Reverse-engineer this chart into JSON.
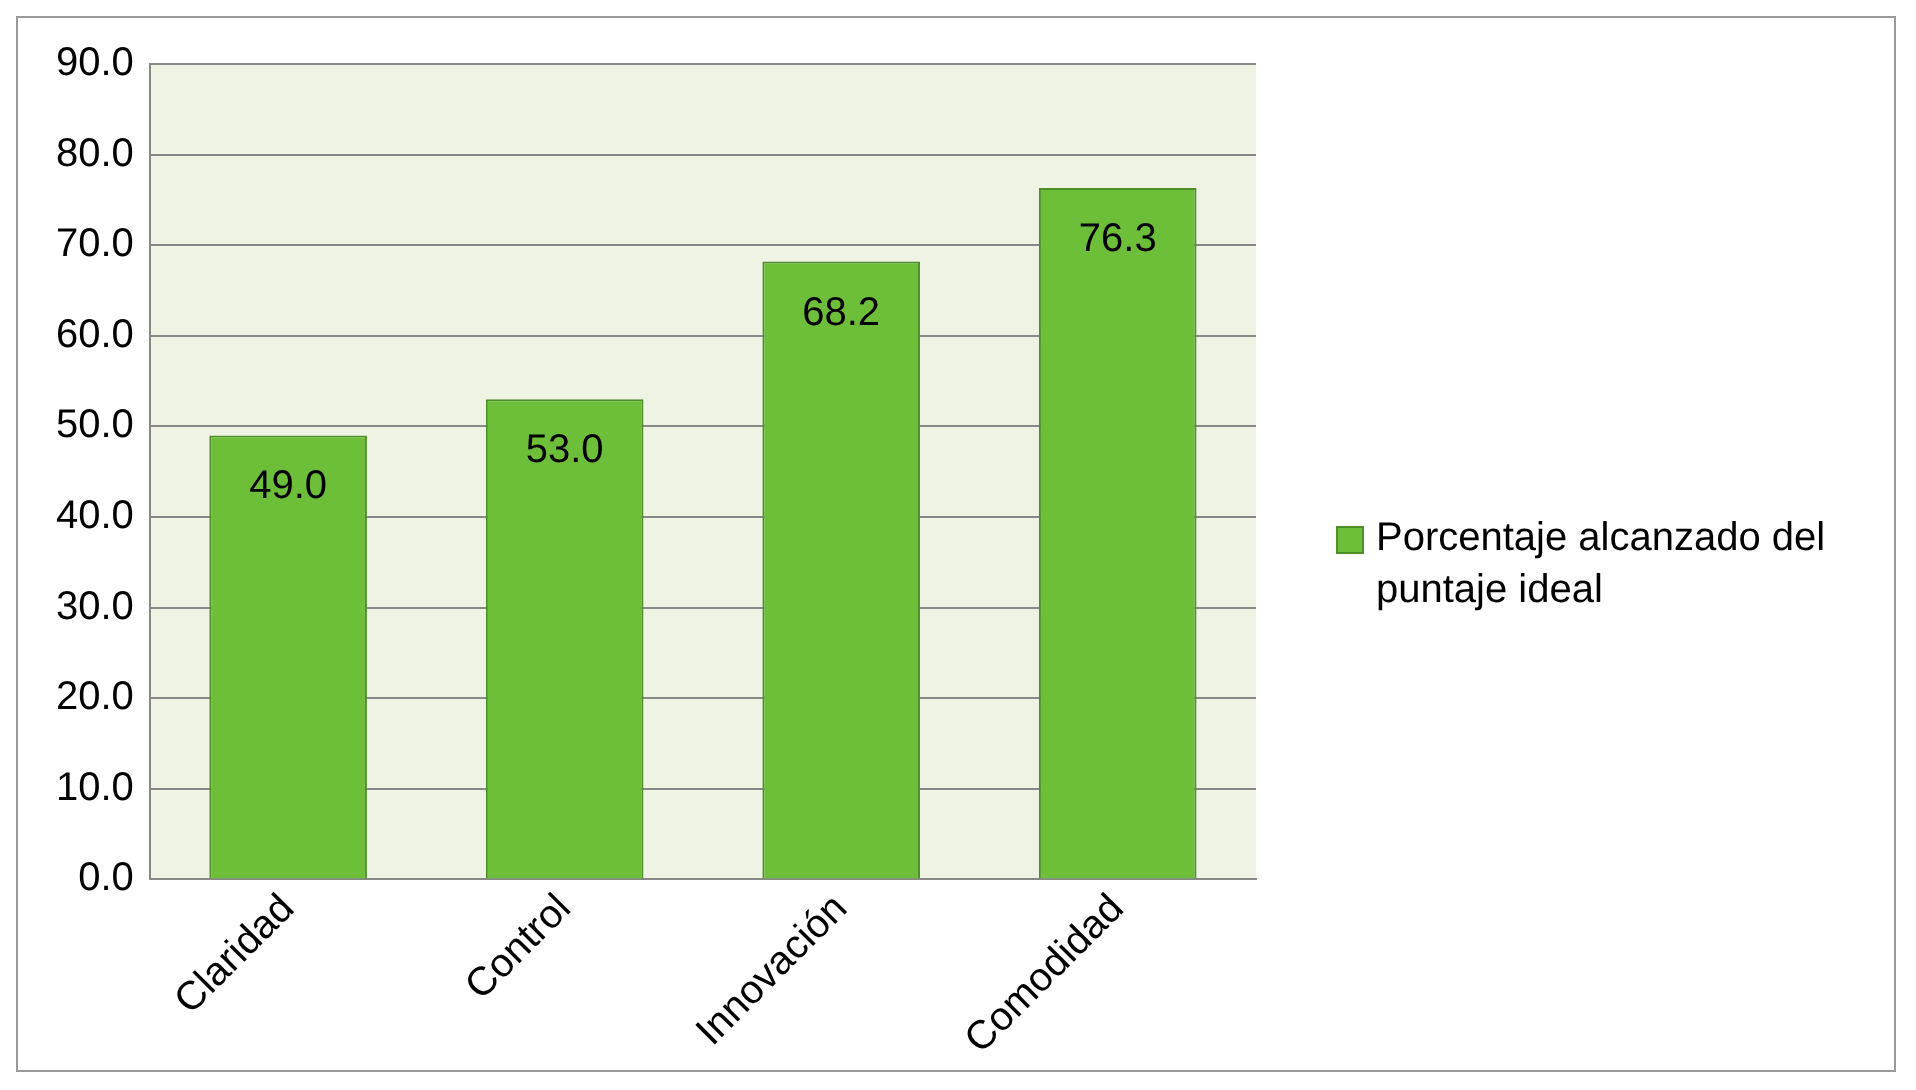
{
  "chart_data": {
    "type": "bar",
    "categories": [
      "Claridad",
      "Control",
      "Innovación",
      "Comodidad"
    ],
    "series": [
      {
        "name": "Porcentaje alcanzado del puntaje ideal",
        "color": "#6dbf3a",
        "values": [
          49.0,
          53.0,
          68.2,
          76.3
        ],
        "value_labels": [
          "49.0",
          "53.0",
          "68.2",
          "76.3"
        ]
      }
    ],
    "ylim": [
      0,
      90
    ],
    "yticks": [
      {
        "value": 0,
        "label": "0.0"
      },
      {
        "value": 10,
        "label": "10.0"
      },
      {
        "value": 20,
        "label": "20.0"
      },
      {
        "value": 30,
        "label": "30.0"
      },
      {
        "value": 40,
        "label": "40.0"
      },
      {
        "value": 50,
        "label": "50.0"
      },
      {
        "value": 60,
        "label": "60.0"
      },
      {
        "value": 70,
        "label": "70.0"
      },
      {
        "value": 80,
        "label": "80.0"
      },
      {
        "value": 90,
        "label": "90.0"
      }
    ],
    "grid": "y",
    "legend": "right"
  }
}
